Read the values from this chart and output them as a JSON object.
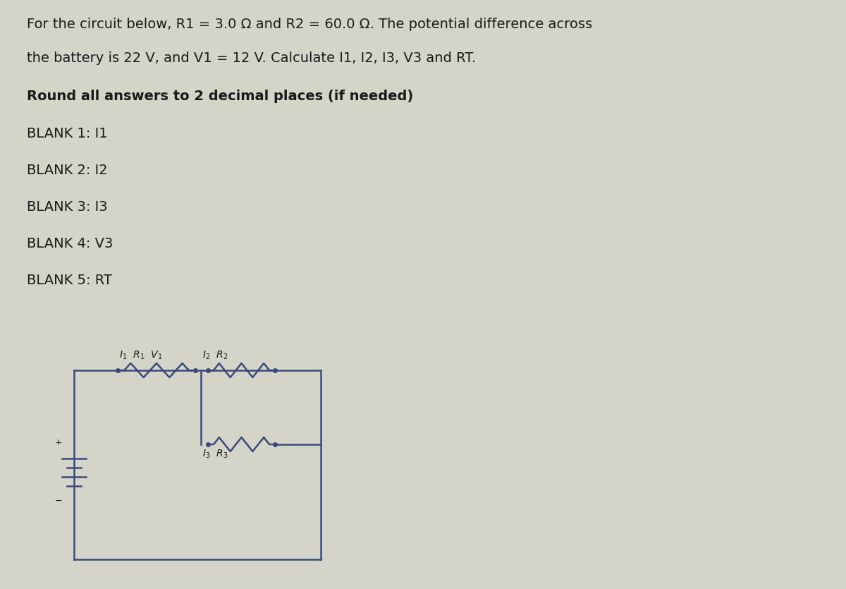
{
  "bg_color": "#d4d4c8",
  "line_color": "#3a4a7a",
  "text_color": "#1a1a1a",
  "title_line1": "For the circuit below, R1 = 3.0 Ω and R2 = 60.0 Ω. The potential difference across",
  "title_line2": "the battery is 22 V, and V1 = 12 V. Calculate I1, I2, I3, V3 and RT.",
  "bold_line": "Round all answers to 2 decimal places (if needed)",
  "blanks": [
    "BLANK 1: I1",
    "BLANK 2: I2",
    "BLANK 3: I3",
    "BLANK 4: V3",
    "BLANK 5: RT"
  ],
  "font_size_title": 14,
  "font_size_bold": 14,
  "font_size_blank": 14,
  "font_size_circuit": 10,
  "circuit_lw": 1.8,
  "dot_size": 4
}
